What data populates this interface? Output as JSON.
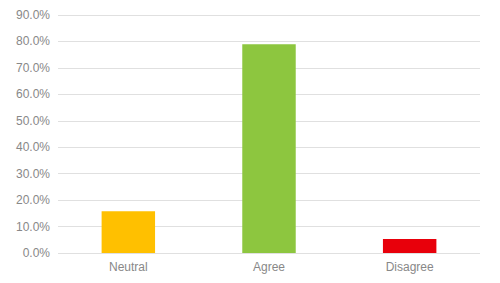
{
  "chart_data": {
    "type": "bar",
    "categories": [
      "Neutral",
      "Agree",
      "Disagree"
    ],
    "values": [
      0.158,
      0.789,
      0.053
    ],
    "colors": [
      "#FFC000",
      "#8DC63F",
      "#E8000B"
    ],
    "ylim": [
      0,
      0.9
    ],
    "yticks": [
      {
        "value": 0.0,
        "label": "0.0%"
      },
      {
        "value": 0.1,
        "label": "10.0%"
      },
      {
        "value": 0.2,
        "label": "20.0%"
      },
      {
        "value": 0.3,
        "label": "30.0%"
      },
      {
        "value": 0.4,
        "label": "40.0%"
      },
      {
        "value": 0.5,
        "label": "50.0%"
      },
      {
        "value": 0.6,
        "label": "60.0%"
      },
      {
        "value": 0.7,
        "label": "70.0%"
      },
      {
        "value": 0.8,
        "label": "80.0%"
      },
      {
        "value": 0.9,
        "label": "90.0%"
      }
    ],
    "grid": true
  }
}
